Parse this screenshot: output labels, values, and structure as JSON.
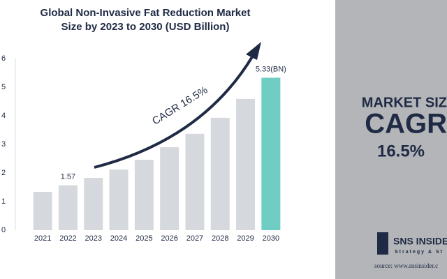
{
  "chart_data": {
    "type": "bar",
    "title": [
      "Global Non-Invasive Fat Reduction Market",
      "Size by 2023 to 2030 (USD Billion)"
    ],
    "categories": [
      "2021",
      "2022",
      "2023",
      "2024",
      "2025",
      "2026",
      "2027",
      "2028",
      "2029",
      "2030"
    ],
    "values": [
      1.34,
      1.57,
      1.83,
      2.12,
      2.46,
      2.9,
      3.37,
      3.93,
      4.59,
      5.33
    ],
    "value_labels": [
      null,
      "1.57",
      null,
      null,
      null,
      null,
      null,
      null,
      null,
      "5.33(BN)"
    ],
    "colors": [
      "#d5d9dd",
      "#d5d9dd",
      "#d5d9dd",
      "#d5d9dd",
      "#d5d9dd",
      "#d5d9dd",
      "#d5d9dd",
      "#d5d9dd",
      "#d5d9dd",
      "#6fcdc3"
    ],
    "ylim": [
      0,
      6
    ],
    "yticks": [
      0,
      1,
      2,
      3,
      4,
      5,
      6
    ],
    "annotation": "CAGR 16.5%"
  },
  "side_panel": {
    "heading": "MARKET SIZ",
    "big": "CAGR",
    "rate": "16.5%",
    "logo": "SNS INSIDER",
    "logo_tagline": "Strategy & St",
    "source": "source: www.snsinsider.c"
  }
}
